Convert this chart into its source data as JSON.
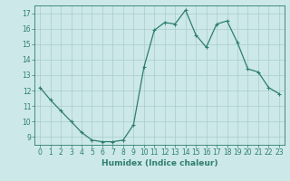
{
  "x": [
    0,
    1,
    2,
    3,
    4,
    5,
    6,
    7,
    8,
    9,
    10,
    11,
    12,
    13,
    14,
    15,
    16,
    17,
    18,
    19,
    20,
    21,
    22,
    23
  ],
  "y": [
    12.2,
    11.4,
    10.7,
    10.0,
    9.3,
    8.8,
    8.7,
    8.7,
    8.8,
    9.8,
    13.5,
    15.9,
    16.4,
    16.3,
    17.2,
    15.6,
    14.8,
    16.3,
    16.5,
    15.1,
    13.4,
    13.2,
    12.2,
    11.8
  ],
  "line_color": "#2e7d6e",
  "marker": "+",
  "marker_size": 3.5,
  "linewidth": 0.9,
  "bg_color": "#cce8e8",
  "grid_color": "#aacccc",
  "xlabel": "Humidex (Indice chaleur)",
  "xlim": [
    -0.5,
    23.5
  ],
  "ylim": [
    8.5,
    17.5
  ],
  "yticks": [
    9,
    10,
    11,
    12,
    13,
    14,
    15,
    16,
    17
  ],
  "xticks": [
    0,
    1,
    2,
    3,
    4,
    5,
    6,
    7,
    8,
    9,
    10,
    11,
    12,
    13,
    14,
    15,
    16,
    17,
    18,
    19,
    20,
    21,
    22,
    23
  ],
  "tick_color": "#2e7d6e",
  "label_color": "#2e7d6e",
  "xlabel_fontsize": 6.5,
  "tick_fontsize": 5.5,
  "ytick_fontsize": 5.5
}
